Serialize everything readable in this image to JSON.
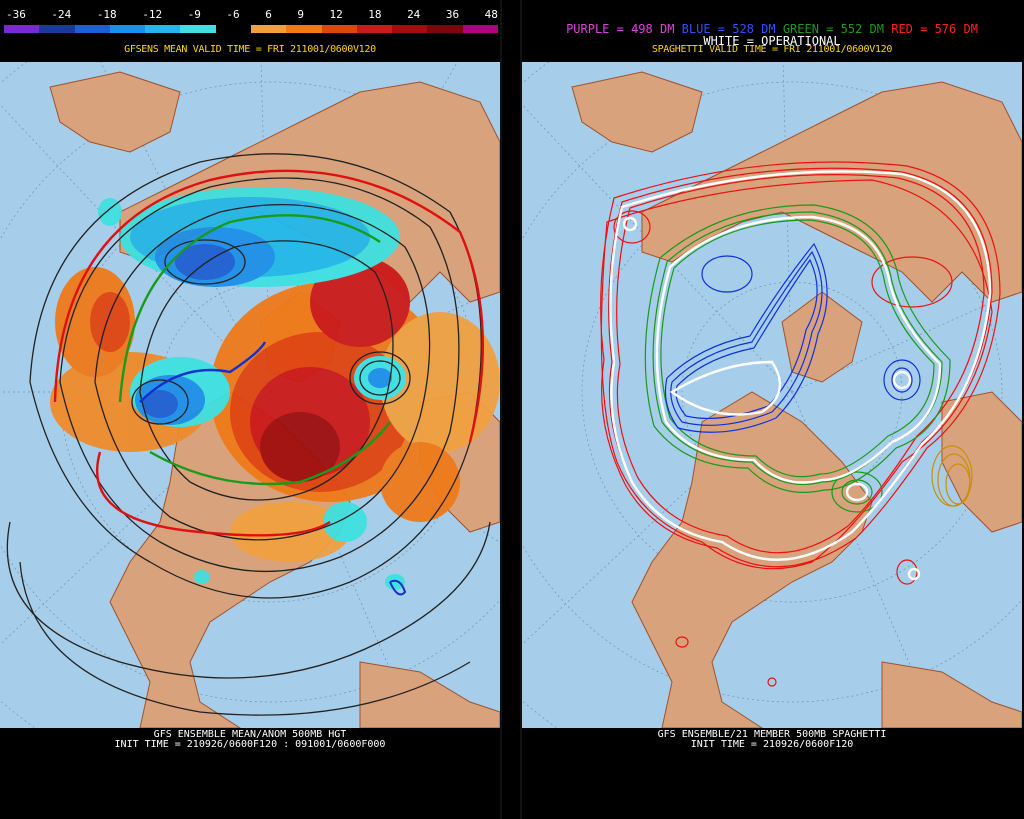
{
  "left": {
    "colorbar": {
      "labels": [
        "-36",
        "-24",
        "-18",
        "-12",
        "-9",
        "-6",
        "6",
        "9",
        "12",
        "18",
        "24",
        "36",
        "48"
      ],
      "colors": [
        "#7a2bd0",
        "#1a3a9a",
        "#1f5fd0",
        "#1e8fe6",
        "#22b8ea",
        "#3fe0e0",
        "#000000",
        "#f0a040",
        "#ef7a1a",
        "#e04510",
        "#cc1a1a",
        "#a00e0e",
        "#7a0808",
        "#b00080"
      ]
    },
    "title": "GFSENS MEAN VALID TIME = FRI 211001/0600V120",
    "caption_line1": "GFS ENSEMBLE MEAN/ANOM 500MB HGT",
    "caption_line2": "INIT TIME = 210926/0600F120 : 091001/0600F000"
  },
  "right": {
    "legend": {
      "purple": "PURPLE = 498 DM",
      "blue": "BLUE = 528 DM",
      "green": "GREEN = 552 DM",
      "red": "RED = 576 DM",
      "white": "WHITE = OPERATIONAL"
    },
    "title": "SPAGHETTI VALID TIME = FRI 211001/0600V120",
    "caption_line1": "GFS ENSEMBLE/21 MEMBER 500MB SPAGHETTI",
    "caption_line2": "INIT TIME = 210926/0600F120"
  },
  "colors": {
    "ocean": "#a6cde9",
    "land": "#d8a27d",
    "border": "#a0522d",
    "purple_text": "#e040e0",
    "blue_text": "#3050ff",
    "green_text": "#1a9a1a",
    "red_text": "#ff2020",
    "title_text": "#ffd700"
  }
}
